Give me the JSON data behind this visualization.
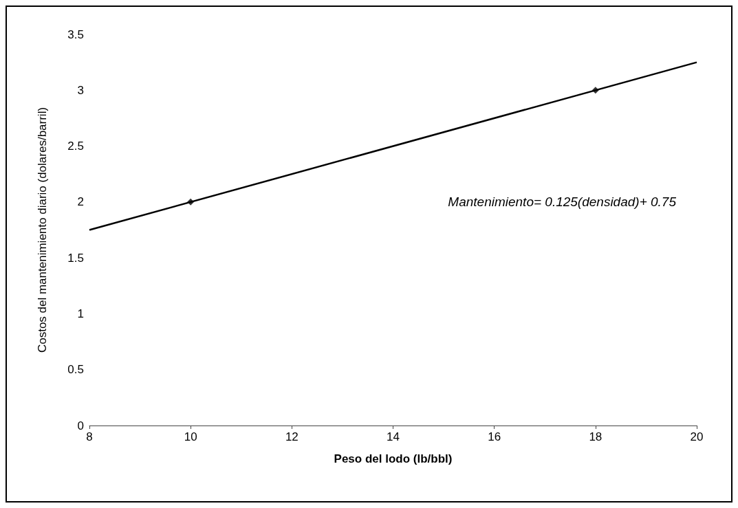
{
  "chart_data": {
    "type": "scatter",
    "xlabel": "Peso del lodo (lb/bbl)",
    "ylabel": "Costos del mantenimiento diario (dolares/barril)",
    "xlim": [
      8,
      20
    ],
    "xticks": [
      8,
      10,
      12,
      14,
      16,
      18,
      20
    ],
    "ylim": [
      0,
      3.5
    ],
    "yticks": [
      0,
      0.5,
      1,
      1.5,
      2,
      2.5,
      3,
      3.5
    ],
    "grid": false,
    "series": [
      {
        "type": "line",
        "color": "#000000",
        "x": [
          8,
          20
        ],
        "values": [
          1.75,
          3.25
        ],
        "marker": "none",
        "line_style": "solid"
      },
      {
        "color": "#000000",
        "x": [
          10,
          18
        ],
        "values": [
          2,
          3
        ],
        "marker": "diamond"
      }
    ],
    "annotations": [
      "Mantenimiento= 0.125(densidad)+ 0.75"
    ]
  }
}
